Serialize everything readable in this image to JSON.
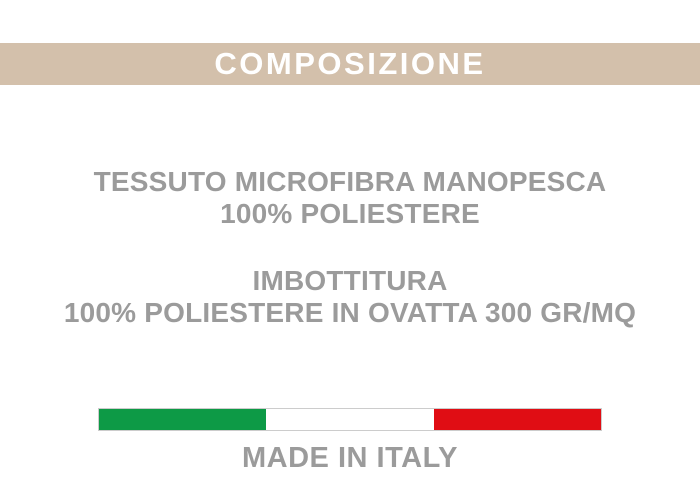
{
  "header": {
    "title": "COMPOSIZIONE",
    "bg_color": "#d3c0ab",
    "text_color": "#ffffff"
  },
  "composition": {
    "fabric": {
      "line1": "TESSUTO MICROFIBRA MANOPESCA",
      "line2": "100% POLIESTERE"
    },
    "padding": {
      "line1": "IMBOTTITURA",
      "line2": "100% POLIESTERE IN OVATTA 300 GR/MQ"
    },
    "text_color": "#9b9b9b"
  },
  "origin": {
    "label": "MADE IN ITALY",
    "flag": {
      "icon": "italy-flag-icon",
      "colors": {
        "green": "#0d9a46",
        "white": "#ffffff",
        "red": "#e00d14"
      },
      "border_color": "#cccccc"
    }
  }
}
